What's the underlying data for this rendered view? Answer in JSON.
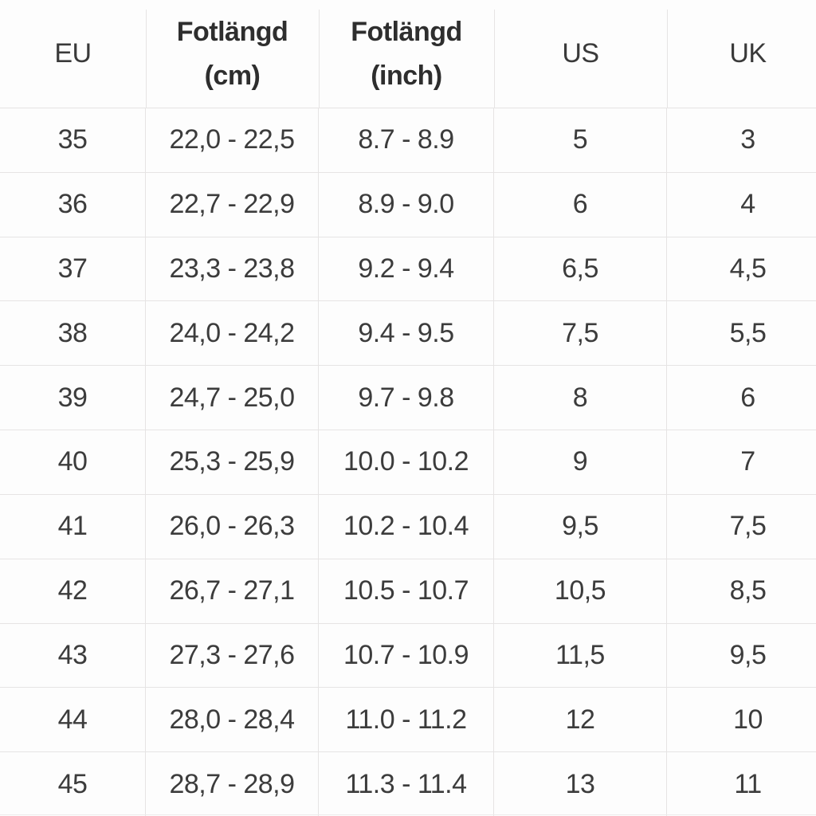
{
  "chart_data": {
    "type": "table",
    "columns": [
      "EU",
      "Fotlängd (cm)",
      "Fotlängd (inch)",
      "US",
      "UK"
    ],
    "rows": [
      [
        "35",
        "22,0 - 22,5",
        "8.7 - 8.9",
        "5",
        "3"
      ],
      [
        "36",
        "22,7 - 22,9",
        "8.9 - 9.0",
        "6",
        "4"
      ],
      [
        "37",
        "23,3 - 23,8",
        "9.2 - 9.4",
        "6,5",
        "4,5"
      ],
      [
        "38",
        "24,0 - 24,2",
        "9.4 - 9.5",
        "7,5",
        "5,5"
      ],
      [
        "39",
        "24,7 - 25,0",
        "9.7 - 9.8",
        "8",
        "6"
      ],
      [
        "40",
        "25,3 - 25,9",
        "10.0 - 10.2",
        "9",
        "7"
      ],
      [
        "41",
        "26,0 - 26,3",
        "10.2 - 10.4",
        "9,5",
        "7,5"
      ],
      [
        "42",
        "26,7 - 27,1",
        "10.5 - 10.7",
        "10,5",
        "8,5"
      ],
      [
        "43",
        "27,3 - 27,6",
        "10.7 - 10.9",
        "11,5",
        "9,5"
      ],
      [
        "44",
        "28,0 - 28,4",
        "11.0 - 11.2",
        "12",
        "10"
      ],
      [
        "45",
        "28,7 - 28,9",
        "11.3 - 11.4",
        "13",
        "11"
      ]
    ]
  },
  "table": {
    "headers": [
      {
        "label": "EU",
        "sub": ""
      },
      {
        "label": "Fotlängd",
        "sub": "(cm)"
      },
      {
        "label": "Fotlängd",
        "sub": "(inch)"
      },
      {
        "label": "US",
        "sub": ""
      },
      {
        "label": "UK",
        "sub": ""
      }
    ]
  },
  "colors": {
    "background": "#FDFDFD",
    "text": "#3C3C3C",
    "header_bold_text": "#2E2E2E",
    "grid_line": "#E6E4E4"
  }
}
